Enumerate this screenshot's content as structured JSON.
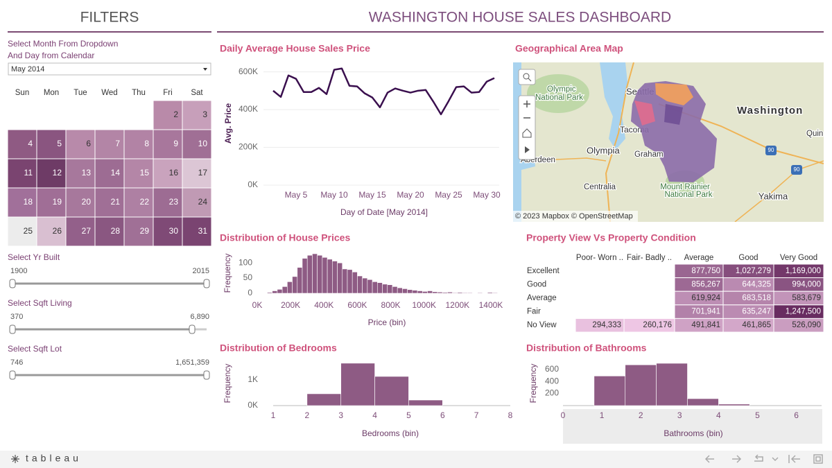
{
  "header": {
    "filters_title": "FILTERS",
    "title": "WASHINGTON HOUSE SALES DASHBOARD"
  },
  "filters": {
    "date_label": [
      "Select Month From Dropdown",
      "And Day from Calendar"
    ],
    "dropdown": "May 2014",
    "weekdays": [
      "Sun",
      "Mon",
      "Tue",
      "Wed",
      "Thu",
      "Fri",
      "Sat"
    ],
    "weeks": [
      [
        null,
        null,
        null,
        null,
        null,
        2,
        3
      ],
      [
        4,
        5,
        6,
        7,
        8,
        9,
        10
      ],
      [
        11,
        12,
        13,
        14,
        15,
        16,
        17
      ],
      [
        18,
        19,
        20,
        21,
        22,
        23,
        24
      ],
      [
        25,
        26,
        27,
        28,
        29,
        30,
        31
      ]
    ],
    "colors": [
      [
        null,
        null,
        null,
        null,
        null,
        "#b98aa9",
        "#c79fba"
      ],
      [
        "#8f5a83",
        "#8a5580",
        "#b88aaa",
        "#b385a6",
        "#b283a5",
        "#a8779c",
        "#a06f95"
      ],
      [
        "#7a4470",
        "#6e3b66",
        "#a7789c",
        "#9d6c93",
        "#b486a7",
        "#c9a3bd",
        "#dcc6d5"
      ],
      [
        "#a1709a",
        "#a06e96",
        "#a7789c",
        "#a06f96",
        "#ae80a3",
        "#9d6c93",
        "#c09ab4"
      ],
      [
        "#ececec",
        "#d9bfd1",
        "#93608a",
        "#8a5781",
        "#a07096",
        "#7f4a76",
        "#7a4471"
      ]
    ],
    "sliders": [
      {
        "label": "Select Yr Built",
        "min": "1900",
        "max": "2015"
      },
      {
        "label": "Select Sqft Living",
        "min": "370",
        "max": "6,890"
      },
      {
        "label": "Select Sqft Lot",
        "min": "746",
        "max": "1,651,359"
      }
    ]
  },
  "map": {
    "title": "Geographical Area Map",
    "labels": [
      "Olympic",
      "National Park",
      "Seattle",
      "Tacoma",
      "Washington",
      "Quin",
      "Olympia",
      "Graham",
      "Aberdeen",
      "Centralia",
      "Mount Rainier",
      "National Park",
      "Yakima",
      "90",
      "90"
    ],
    "attribution": "© 2023 Mapbox © OpenStreetMap"
  },
  "table": {
    "title": "Property View Vs Property Condition",
    "columns": [
      "Poor- Worn ..",
      "Fair- Badly ..",
      "Average",
      "Good",
      "Very Good"
    ],
    "rows": [
      {
        "label": "Excellent",
        "cells": [
          null,
          null,
          "877,750",
          "1,027,279",
          "1,169,000"
        ]
      },
      {
        "label": "Good",
        "cells": [
          null,
          null,
          "856,267",
          "644,325",
          "994,000"
        ]
      },
      {
        "label": "Average",
        "cells": [
          null,
          null,
          "619,924",
          "683,518",
          "583,679"
        ]
      },
      {
        "label": "Fair",
        "cells": [
          null,
          null,
          "701,941",
          "635,247",
          "1,247,500"
        ]
      },
      {
        "label": "No View",
        "cells": [
          "294,333",
          "260,176",
          "491,841",
          "461,865",
          "526,090"
        ]
      }
    ]
  },
  "chart_data": [
    {
      "type": "line",
      "title": "Daily Average House Sales Price",
      "x_label": "Day of Date [May 2014]",
      "y_label": "Avg. Price",
      "x": [
        2,
        3,
        4,
        5,
        6,
        7,
        8,
        9,
        10,
        11,
        12,
        13,
        14,
        15,
        16,
        17,
        18,
        19,
        20,
        21,
        22,
        23,
        24,
        25,
        26,
        27,
        28,
        29,
        30,
        31
      ],
      "values": [
        500000,
        467000,
        581000,
        563000,
        493000,
        493000,
        515000,
        482000,
        611000,
        618000,
        526000,
        523000,
        486000,
        464000,
        412000,
        490000,
        512000,
        500000,
        490000,
        500000,
        504000,
        442000,
        375000,
        445000,
        519000,
        523000,
        490000,
        493000,
        548000,
        567000
      ],
      "color": "#3a0f4e",
      "xlim": [
        1,
        32
      ],
      "xticks": [
        {
          "value": 5,
          "label": "May 5"
        },
        {
          "value": 10,
          "label": "May 10"
        },
        {
          "value": 15,
          "label": "May 15"
        },
        {
          "value": 20,
          "label": "May 20"
        },
        {
          "value": 25,
          "label": "May 25"
        },
        {
          "value": 30,
          "label": "May 30"
        }
      ],
      "ylim": [
        0,
        650000
      ],
      "yticks": [
        {
          "value": 0,
          "label": "0K"
        },
        {
          "value": 200000,
          "label": "200K"
        },
        {
          "value": 400000,
          "label": "400K"
        },
        {
          "value": 600000,
          "label": "600K"
        }
      ],
      "grid": true
    },
    {
      "type": "histogram",
      "title": "Distribution of House Prices",
      "x_label": "Price (bin)",
      "y_label": "Frequency",
      "bins": [
        60000,
        90000,
        120000,
        150000,
        180000,
        210000,
        240000,
        270000,
        300000,
        330000,
        360000,
        390000,
        420000,
        450000,
        480000,
        510000,
        540000,
        570000,
        600000,
        630000,
        660000,
        690000,
        720000,
        750000,
        780000,
        810000,
        840000,
        870000,
        900000,
        930000,
        960000,
        990000,
        1020000,
        1050000,
        1080000,
        1110000,
        1140000,
        1170000,
        1200000,
        1230000,
        1260000,
        1290000,
        1320000,
        1350000,
        1380000,
        1410000,
        1440000
      ],
      "values": [
        3,
        8,
        13,
        22,
        38,
        55,
        85,
        115,
        125,
        130,
        125,
        118,
        112,
        106,
        100,
        80,
        78,
        70,
        57,
        50,
        45,
        38,
        35,
        30,
        28,
        22,
        18,
        15,
        12,
        10,
        8,
        6,
        8,
        5,
        4,
        3,
        4,
        2,
        3,
        2,
        2,
        1,
        2,
        1,
        3,
        2
      ],
      "color": "#8e5b84",
      "xlim": [
        0,
        1450000
      ],
      "xticks": [
        {
          "value": 0,
          "label": "0K"
        },
        {
          "value": 200000,
          "label": "200K"
        },
        {
          "value": 400000,
          "label": "400K"
        },
        {
          "value": 600000,
          "label": "600K"
        },
        {
          "value": 800000,
          "label": "800K"
        },
        {
          "value": 1000000,
          "label": "1000K"
        },
        {
          "value": 1200000,
          "label": "1200K"
        },
        {
          "value": 1400000,
          "label": "1400K"
        }
      ],
      "ylim": [
        0,
        130
      ],
      "yticks": [
        0,
        50,
        100
      ],
      "grid": false
    },
    {
      "type": "histogram",
      "title": "Distribution of Bedrooms",
      "x_label": "Bedrooms (bin)",
      "y_label": "Frequency",
      "bins": [
        1,
        2,
        3,
        4,
        5,
        6,
        7,
        8
      ],
      "values": [
        0,
        460,
        1650,
        1135,
        216,
        0,
        0
      ],
      "color": "#8e5b84",
      "xlim": [
        1,
        8
      ],
      "xticks": [
        1,
        2,
        3,
        4,
        5,
        6,
        7,
        8
      ],
      "ylim": [
        0,
        1700
      ],
      "yticks": [
        {
          "value": 0,
          "label": "0K"
        },
        {
          "value": 1000,
          "label": "1K"
        }
      ],
      "grid": false
    },
    {
      "type": "histogram",
      "title": "Distribution of Bathrooms",
      "x_label": "Bathrooms (bin)",
      "y_label": "Frequency",
      "bins": [
        0.8,
        1.6,
        2.4,
        3.2,
        4.0,
        4.8
      ],
      "values": [
        490,
        675,
        700,
        115,
        25
      ],
      "color": "#8e5b84",
      "xlim": [
        0,
        6.65
      ],
      "xticks": [
        0,
        1,
        2,
        3,
        4,
        5,
        6
      ],
      "ylim": [
        0,
        700
      ],
      "yticks": [
        200,
        400,
        600
      ],
      "grid": false
    }
  ],
  "footer": {
    "logo": "tableau"
  }
}
